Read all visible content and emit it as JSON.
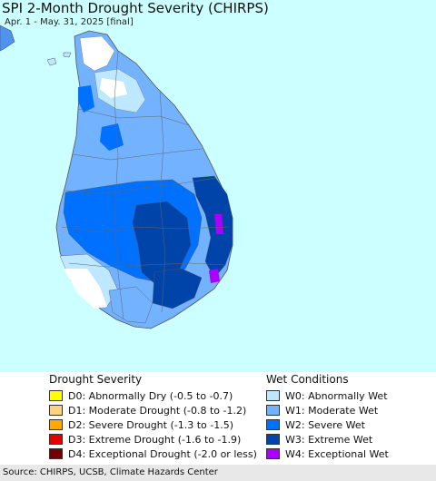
{
  "map": {
    "title": "SPI 2-Month Drought Severity (CHIRPS)",
    "subtitle": "Apr. 1 - May. 31, 2025 [final]",
    "colors": {
      "sea": "#ccffff",
      "land_white": "#ffffff",
      "border": "#555555"
    }
  },
  "legend": {
    "drought_heading": "Drought Severity",
    "wet_heading": "Wet Conditions",
    "drought_items": [
      {
        "label": "D0: Abnormally Dry (-0.5 to -0.7)",
        "color": "#ffff00"
      },
      {
        "label": "D1: Moderate Drought (-0.8 to -1.2)",
        "color": "#fcd37f"
      },
      {
        "label": "D2: Severe Drought (-1.3 to -1.5)",
        "color": "#ffaa00"
      },
      {
        "label": "D3: Extreme Drought (-1.6 to -1.9)",
        "color": "#e60000"
      },
      {
        "label": "D4: Exceptional Drought (-2.0 or less)",
        "color": "#730000"
      }
    ],
    "wet_items": [
      {
        "label": "W0: Abnormally Wet",
        "color": "#bee8ff"
      },
      {
        "label": "W1: Moderate Wet",
        "color": "#73b2ff"
      },
      {
        "label": "W2: Severe Wet",
        "color": "#0070ff"
      },
      {
        "label": "W3: Extreme Wet",
        "color": "#0044aa"
      },
      {
        "label": "W4: Exceptional Wet",
        "color": "#aa00ff"
      }
    ]
  },
  "footer": {
    "source": "Source: CHIRPS, UCSB, Climate Hazards Center"
  }
}
